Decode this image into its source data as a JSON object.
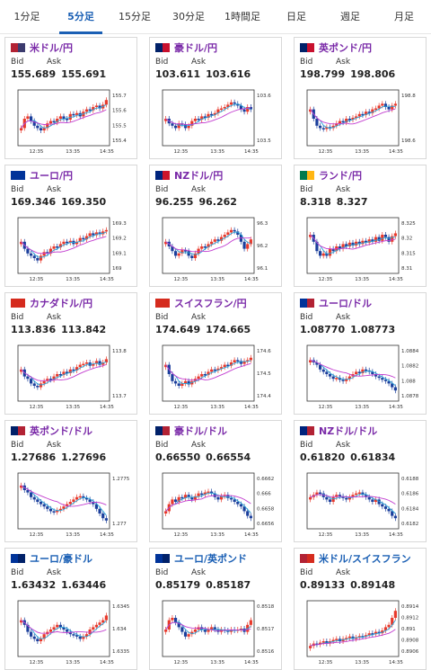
{
  "tabs": [
    {
      "label": "1分足",
      "active": false
    },
    {
      "label": "5分足",
      "active": true
    },
    {
      "label": "15分足",
      "active": false
    },
    {
      "label": "30分足",
      "active": false
    },
    {
      "label": "1時間足",
      "active": false
    },
    {
      "label": "日足",
      "active": false
    },
    {
      "label": "週足",
      "active": false
    },
    {
      "label": "月足",
      "active": false
    }
  ],
  "labels": {
    "bid": "Bid",
    "ask": "Ask"
  },
  "colors": {
    "up": "#e8392b",
    "down": "#1b3f9c",
    "ma_fast": "#2aa3d8",
    "ma_slow": "#c23ccf",
    "tab_active": "#1a5fb4"
  },
  "cards": [
    {
      "pair": "米ドル/円",
      "color": "purple",
      "flag": [
        "#b22234",
        "#3c3b6e"
      ],
      "bid": "155.689",
      "ask": "155.691",
      "chart_data": {
        "type": "candlestick",
        "ticks": [
          "155.7",
          "155.6",
          "155.5",
          "155.4"
        ],
        "times": [
          "12:35",
          "13:35",
          "14:35"
        ],
        "trend": [
          0.3,
          0.5,
          0.55,
          0.45,
          0.35,
          0.3,
          0.25,
          0.3,
          0.4,
          0.45,
          0.42,
          0.5,
          0.55,
          0.5,
          0.48,
          0.6,
          0.58,
          0.62,
          0.55,
          0.65,
          0.7,
          0.68,
          0.75,
          0.78,
          0.72,
          0.8,
          0.9
        ]
      }
    },
    {
      "pair": "豪ドル/円",
      "color": "purple",
      "flag": [
        "#012169",
        "#c8102e"
      ],
      "bid": "103.611",
      "ask": "103.616",
      "chart_data": {
        "type": "candlestick",
        "ticks": [
          "103.6",
          "103.5"
        ],
        "times": [
          "12:35",
          "13:35",
          "14:35"
        ],
        "trend": [
          0.5,
          0.4,
          0.35,
          0.3,
          0.4,
          0.38,
          0.3,
          0.35,
          0.45,
          0.5,
          0.48,
          0.55,
          0.52,
          0.6,
          0.58,
          0.62,
          0.7,
          0.72,
          0.75,
          0.8,
          0.85,
          0.82,
          0.78,
          0.7,
          0.65,
          0.75,
          0.7
        ]
      }
    },
    {
      "pair": "英ポンド/円",
      "color": "purple",
      "flag": [
        "#012169",
        "#c8102e"
      ],
      "bid": "198.799",
      "ask": "198.806",
      "chart_data": {
        "type": "candlestick",
        "ticks": [
          "198.8",
          "198.6"
        ],
        "times": [
          "12:35",
          "13:35",
          "14:35"
        ],
        "trend": [
          0.7,
          0.5,
          0.35,
          0.3,
          0.28,
          0.32,
          0.3,
          0.35,
          0.4,
          0.45,
          0.42,
          0.5,
          0.48,
          0.52,
          0.55,
          0.6,
          0.58,
          0.65,
          0.62,
          0.7,
          0.72,
          0.78,
          0.82,
          0.75,
          0.7,
          0.78,
          0.82
        ]
      }
    },
    {
      "pair": "ユーロ/円",
      "color": "purple",
      "flag": [
        "#003399",
        "#003399"
      ],
      "bid": "169.346",
      "ask": "169.350",
      "chart_data": {
        "type": "candlestick",
        "ticks": [
          "169.3",
          "169.2",
          "169.1",
          "169"
        ],
        "times": [
          "12:35",
          "13:35",
          "14:35"
        ],
        "trend": [
          0.6,
          0.45,
          0.35,
          0.3,
          0.25,
          0.2,
          0.3,
          0.38,
          0.35,
          0.45,
          0.5,
          0.48,
          0.55,
          0.6,
          0.58,
          0.62,
          0.55,
          0.6,
          0.68,
          0.65,
          0.72,
          0.78,
          0.74,
          0.8,
          0.76,
          0.82,
          0.85
        ]
      }
    },
    {
      "pair": "NZドル/円",
      "color": "purple",
      "flag": [
        "#00247d",
        "#cc142b"
      ],
      "bid": "96.255",
      "ask": "96.262",
      "chart_data": {
        "type": "candlestick",
        "ticks": [
          "96.3",
          "96.2",
          "96.1"
        ],
        "times": [
          "12:35",
          "13:35",
          "14:35"
        ],
        "trend": [
          0.6,
          0.5,
          0.4,
          0.3,
          0.35,
          0.42,
          0.4,
          0.3,
          0.25,
          0.35,
          0.45,
          0.5,
          0.48,
          0.55,
          0.6,
          0.65,
          0.62,
          0.7,
          0.75,
          0.8,
          0.85,
          0.82,
          0.75,
          0.6,
          0.45,
          0.55,
          0.65
        ]
      }
    },
    {
      "pair": "ランド/円",
      "color": "purple",
      "flag": [
        "#007a4d",
        "#ffb612"
      ],
      "bid": "8.318",
      "ask": "8.327",
      "chart_data": {
        "type": "candlestick",
        "ticks": [
          "8.325",
          "8.32",
          "8.315",
          "8.31"
        ],
        "times": [
          "12:35",
          "13:35",
          "14:35"
        ],
        "trend": [
          0.75,
          0.6,
          0.4,
          0.3,
          0.35,
          0.3,
          0.45,
          0.4,
          0.5,
          0.45,
          0.55,
          0.5,
          0.58,
          0.52,
          0.6,
          0.55,
          0.62,
          0.58,
          0.65,
          0.6,
          0.7,
          0.62,
          0.75,
          0.7,
          0.6,
          0.72,
          0.78
        ]
      }
    },
    {
      "pair": "カナダドル/円",
      "color": "purple",
      "flag": [
        "#d52b1e",
        "#d52b1e"
      ],
      "bid": "113.836",
      "ask": "113.842",
      "chart_data": {
        "type": "candlestick",
        "ticks": [
          "113.8",
          "113.7"
        ],
        "times": [
          "12:35",
          "13:35",
          "14:35"
        ],
        "trend": [
          0.6,
          0.45,
          0.4,
          0.3,
          0.25,
          0.22,
          0.3,
          0.35,
          0.4,
          0.38,
          0.45,
          0.5,
          0.48,
          0.55,
          0.52,
          0.6,
          0.58,
          0.65,
          0.7,
          0.72,
          0.75,
          0.68,
          0.72,
          0.78,
          0.7,
          0.75,
          0.82
        ]
      }
    },
    {
      "pair": "スイスフラン/円",
      "color": "purple",
      "flag": [
        "#d52b1e",
        "#d52b1e"
      ],
      "bid": "174.649",
      "ask": "174.665",
      "chart_data": {
        "type": "candlestick",
        "ticks": [
          "174.6",
          "174.5",
          "174.4"
        ],
        "times": [
          "12:35",
          "13:35",
          "14:35"
        ],
        "trend": [
          0.7,
          0.5,
          0.35,
          0.3,
          0.25,
          0.3,
          0.35,
          0.28,
          0.35,
          0.4,
          0.45,
          0.5,
          0.48,
          0.55,
          0.6,
          0.58,
          0.62,
          0.65,
          0.7,
          0.68,
          0.75,
          0.8,
          0.78,
          0.72,
          0.78,
          0.8,
          0.85
        ]
      }
    },
    {
      "pair": "ユーロ/ドル",
      "color": "purple",
      "flag": [
        "#003399",
        "#b22234"
      ],
      "bid": "1.08770",
      "ask": "1.08773",
      "chart_data": {
        "type": "candlestick",
        "ticks": [
          "1.0884",
          "1.0882",
          "1.088",
          "1.0878"
        ],
        "times": [
          "12:35",
          "13:35",
          "14:35"
        ],
        "trend": [
          0.8,
          0.75,
          0.7,
          0.6,
          0.55,
          0.5,
          0.45,
          0.4,
          0.42,
          0.38,
          0.35,
          0.4,
          0.45,
          0.5,
          0.55,
          0.52,
          0.6,
          0.58,
          0.55,
          0.5,
          0.45,
          0.42,
          0.38,
          0.35,
          0.3,
          0.22,
          0.15
        ]
      }
    },
    {
      "pair": "英ポンド/ドル",
      "color": "purple",
      "flag": [
        "#012169",
        "#b22234"
      ],
      "bid": "1.27686",
      "ask": "1.27696",
      "chart_data": {
        "type": "candlestick",
        "ticks": [
          "1.2775",
          "1.277"
        ],
        "times": [
          "12:35",
          "13:35",
          "14:35"
        ],
        "trend": [
          0.85,
          0.75,
          0.7,
          0.6,
          0.55,
          0.5,
          0.45,
          0.4,
          0.35,
          0.3,
          0.28,
          0.32,
          0.35,
          0.4,
          0.45,
          0.5,
          0.55,
          0.6,
          0.62,
          0.58,
          0.55,
          0.5,
          0.45,
          0.35,
          0.25,
          0.15,
          0.1
        ]
      }
    },
    {
      "pair": "豪ドル/ドル",
      "color": "purple",
      "flag": [
        "#012169",
        "#b22234"
      ],
      "bid": "0.66550",
      "ask": "0.66554",
      "chart_data": {
        "type": "candlestick",
        "ticks": [
          "0.6662",
          "0.666",
          "0.6658",
          "0.6656"
        ],
        "times": [
          "12:35",
          "13:35",
          "14:35"
        ],
        "trend": [
          0.3,
          0.45,
          0.55,
          0.5,
          0.6,
          0.58,
          0.65,
          0.6,
          0.55,
          0.62,
          0.68,
          0.65,
          0.7,
          0.72,
          0.68,
          0.6,
          0.55,
          0.62,
          0.65,
          0.58,
          0.55,
          0.5,
          0.45,
          0.4,
          0.3,
          0.2,
          0.15
        ]
      }
    },
    {
      "pair": "NZドル/ドル",
      "color": "purple",
      "flag": [
        "#00247d",
        "#b22234"
      ],
      "bid": "0.61820",
      "ask": "0.61834",
      "chart_data": {
        "type": "candlestick",
        "ticks": [
          "0.6188",
          "0.6186",
          "0.6184",
          "0.6182"
        ],
        "times": [
          "12:35",
          "13:35",
          "14:35"
        ],
        "trend": [
          0.6,
          0.65,
          0.7,
          0.68,
          0.6,
          0.55,
          0.5,
          0.6,
          0.65,
          0.62,
          0.58,
          0.55,
          0.6,
          0.65,
          0.68,
          0.7,
          0.65,
          0.6,
          0.55,
          0.5,
          0.55,
          0.45,
          0.4,
          0.35,
          0.3,
          0.2,
          0.15
        ]
      }
    },
    {
      "pair": "ユーロ/豪ドル",
      "color": "blue",
      "flag": [
        "#003399",
        "#012169"
      ],
      "bid": "1.63432",
      "ask": "1.63446",
      "chart_data": {
        "type": "candlestick",
        "ticks": [
          "1.6345",
          "1.634",
          "1.6335"
        ],
        "times": [
          "12:35",
          "13:35",
          "14:35"
        ],
        "trend": [
          0.7,
          0.6,
          0.45,
          0.35,
          0.3,
          0.25,
          0.3,
          0.4,
          0.45,
          0.5,
          0.55,
          0.6,
          0.55,
          0.5,
          0.45,
          0.4,
          0.38,
          0.35,
          0.3,
          0.35,
          0.4,
          0.5,
          0.55,
          0.6,
          0.65,
          0.7,
          0.8
        ]
      }
    },
    {
      "pair": "ユーロ/英ポンド",
      "color": "blue",
      "flag": [
        "#003399",
        "#012169"
      ],
      "bid": "0.85179",
      "ask": "0.85187",
      "chart_data": {
        "type": "candlestick",
        "ticks": [
          "0.8518",
          "0.8517",
          "0.8516"
        ],
        "times": [
          "12:35",
          "13:35",
          "14:35"
        ],
        "trend": [
          0.5,
          0.7,
          0.75,
          0.65,
          0.55,
          0.45,
          0.35,
          0.4,
          0.45,
          0.5,
          0.55,
          0.5,
          0.45,
          0.5,
          0.55,
          0.5,
          0.45,
          0.5,
          0.48,
          0.45,
          0.5,
          0.48,
          0.5,
          0.52,
          0.45,
          0.6,
          0.7
        ]
      }
    },
    {
      "pair": "米ドル/スイスフラン",
      "color": "blue",
      "flag": [
        "#b22234",
        "#d52b1e"
      ],
      "bid": "0.89133",
      "ask": "0.89148",
      "chart_data": {
        "type": "candlestick",
        "ticks": [
          "0.8914",
          "0.8912",
          "0.891",
          "0.8908",
          "0.8906"
        ],
        "times": [
          "12:35",
          "13:35",
          "14:35"
        ],
        "trend": [
          0.15,
          0.2,
          0.18,
          0.22,
          0.25,
          0.2,
          0.25,
          0.28,
          0.3,
          0.25,
          0.3,
          0.32,
          0.35,
          0.3,
          0.33,
          0.36,
          0.35,
          0.38,
          0.42,
          0.4,
          0.45,
          0.42,
          0.48,
          0.55,
          0.6,
          0.75,
          0.9
        ]
      }
    }
  ]
}
